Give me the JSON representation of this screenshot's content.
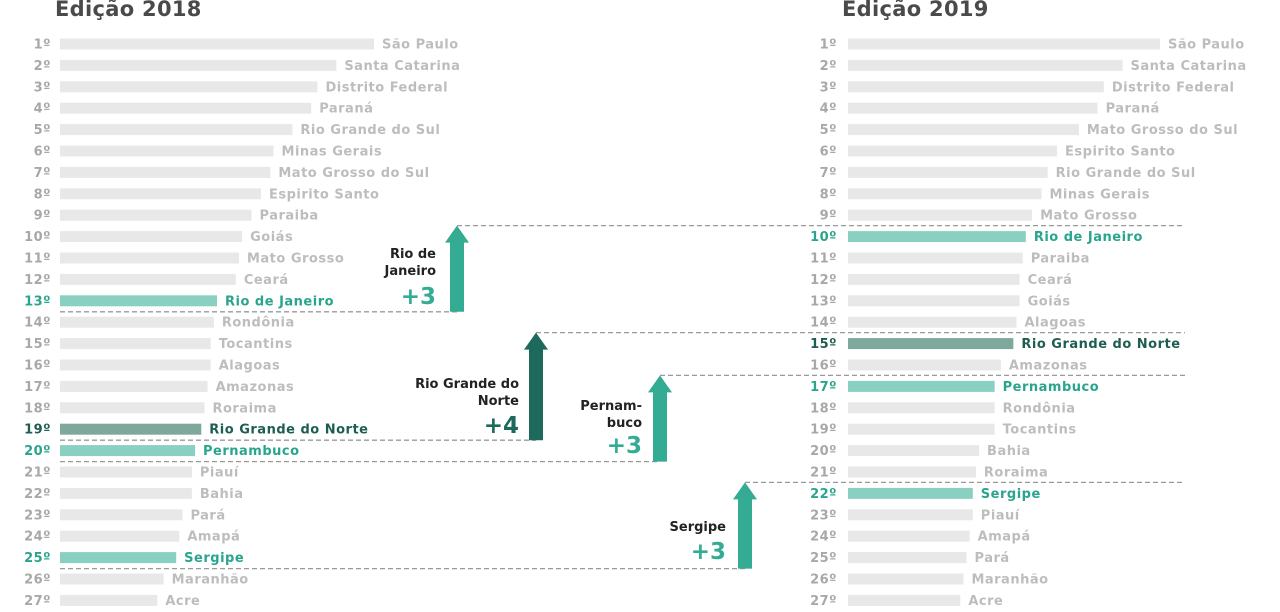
{
  "colors": {
    "bar_default": "#e8e8e8",
    "label_default": "#bdbdbd",
    "rank_default": "#a8a8a8",
    "highlight_teal": "#8ad0c1",
    "highlight_teal_text": "#2aa58d",
    "highlight_dark": "#7fa89c",
    "highlight_dark_text": "#1e5e52",
    "arrow_teal": "#34ab93",
    "arrow_dark": "#1d6a5c",
    "annotation_text": "#222222",
    "dash_line": "#9a9a9a"
  },
  "chart_data": [
    {
      "type": "bar",
      "title": "Edição 2018",
      "categories": [
        "São Paulo",
        "Santa Catarina",
        "Distrito Federal",
        "Paraná",
        "Rio Grande do Sul",
        "Minas Gerais",
        "Mato Grosso do Sul",
        "Espirito Santo",
        "Paraiba",
        "Goiás",
        "Mato Grosso",
        "Ceará",
        "Rio de Janeiro",
        "Rondônia",
        "Tocantins",
        "Alagoas",
        "Amazonas",
        "Roraima",
        "Rio Grande do Norte",
        "Pernambuco",
        "Piauí",
        "Bahia",
        "Pará",
        "Amapá",
        "Sergipe",
        "Maranhão",
        "Acre"
      ],
      "ranks": [
        "1º",
        "2º",
        "3º",
        "4º",
        "5º",
        "6º",
        "7º",
        "8º",
        "9º",
        "10º",
        "11º",
        "12º",
        "13º",
        "14º",
        "15º",
        "16º",
        "17º",
        "18º",
        "19º",
        "20º",
        "21º",
        "22º",
        "23º",
        "24º",
        "25º",
        "26º",
        "27º"
      ],
      "values": [
        100,
        88,
        82,
        80,
        74,
        68,
        67,
        64,
        61,
        58,
        57,
        56,
        50,
        49,
        48,
        48,
        47,
        46,
        45,
        43,
        42,
        42,
        39,
        38,
        37,
        33,
        31
      ],
      "highlight": {
        "Rio de Janeiro": "teal",
        "Rio Grande do Norte": "dark",
        "Pernambuco": "teal",
        "Sergipe": "teal"
      }
    },
    {
      "type": "bar",
      "title": "Edição 2019",
      "categories": [
        "São Paulo",
        "Santa Catarina",
        "Distrito Federal",
        "Paraná",
        "Mato Grosso do Sul",
        "Espirito Santo",
        "Rio Grande do Sul",
        "Minas Gerais",
        "Mato Grosso",
        "Rio de Janeiro",
        "Paraiba",
        "Ceará",
        "Goiás",
        "Alagoas",
        "Rio Grande do Norte",
        "Amazonas",
        "Pernambuco",
        "Rondônia",
        "Tocantins",
        "Bahia",
        "Roraima",
        "Sergipe",
        "Piauí",
        "Amapá",
        "Pará",
        "Maranhão",
        "Acre"
      ],
      "ranks": [
        "1º",
        "2º",
        "3º",
        "4º",
        "5º",
        "6º",
        "7º",
        "8º",
        "9º",
        "10º",
        "11º",
        "12º",
        "13º",
        "14º",
        "15º",
        "16º",
        "17º",
        "18º",
        "19º",
        "20º",
        "21º",
        "22º",
        "23º",
        "24º",
        "25º",
        "26º",
        "27º"
      ],
      "values": [
        100,
        88,
        82,
        80,
        74,
        67,
        64,
        62,
        59,
        57,
        56,
        55,
        55,
        54,
        53,
        49,
        47,
        47,
        47,
        42,
        41,
        40,
        40,
        39,
        38,
        37,
        36
      ],
      "highlight": {
        "Rio de Janeiro": "teal",
        "Rio Grande do Norte": "dark",
        "Pernambuco": "teal",
        "Sergipe": "teal"
      }
    }
  ],
  "annotations": [
    {
      "label_lines": [
        "Rio de",
        "Janeiro"
      ],
      "change": "+3",
      "from_rank": 13,
      "to_rank": 10,
      "color": "teal"
    },
    {
      "label_lines": [
        "Rio Grande do",
        "Norte"
      ],
      "change": "+4",
      "from_rank": 19,
      "to_rank": 15,
      "color": "dark"
    },
    {
      "label_lines": [
        "Pernam-",
        "buco"
      ],
      "change": "+3",
      "from_rank": 20,
      "to_rank": 17,
      "color": "teal"
    },
    {
      "label_lines": [
        "Sergipe"
      ],
      "change": "+3",
      "from_rank": 25,
      "to_rank": 22,
      "color": "teal"
    }
  ]
}
